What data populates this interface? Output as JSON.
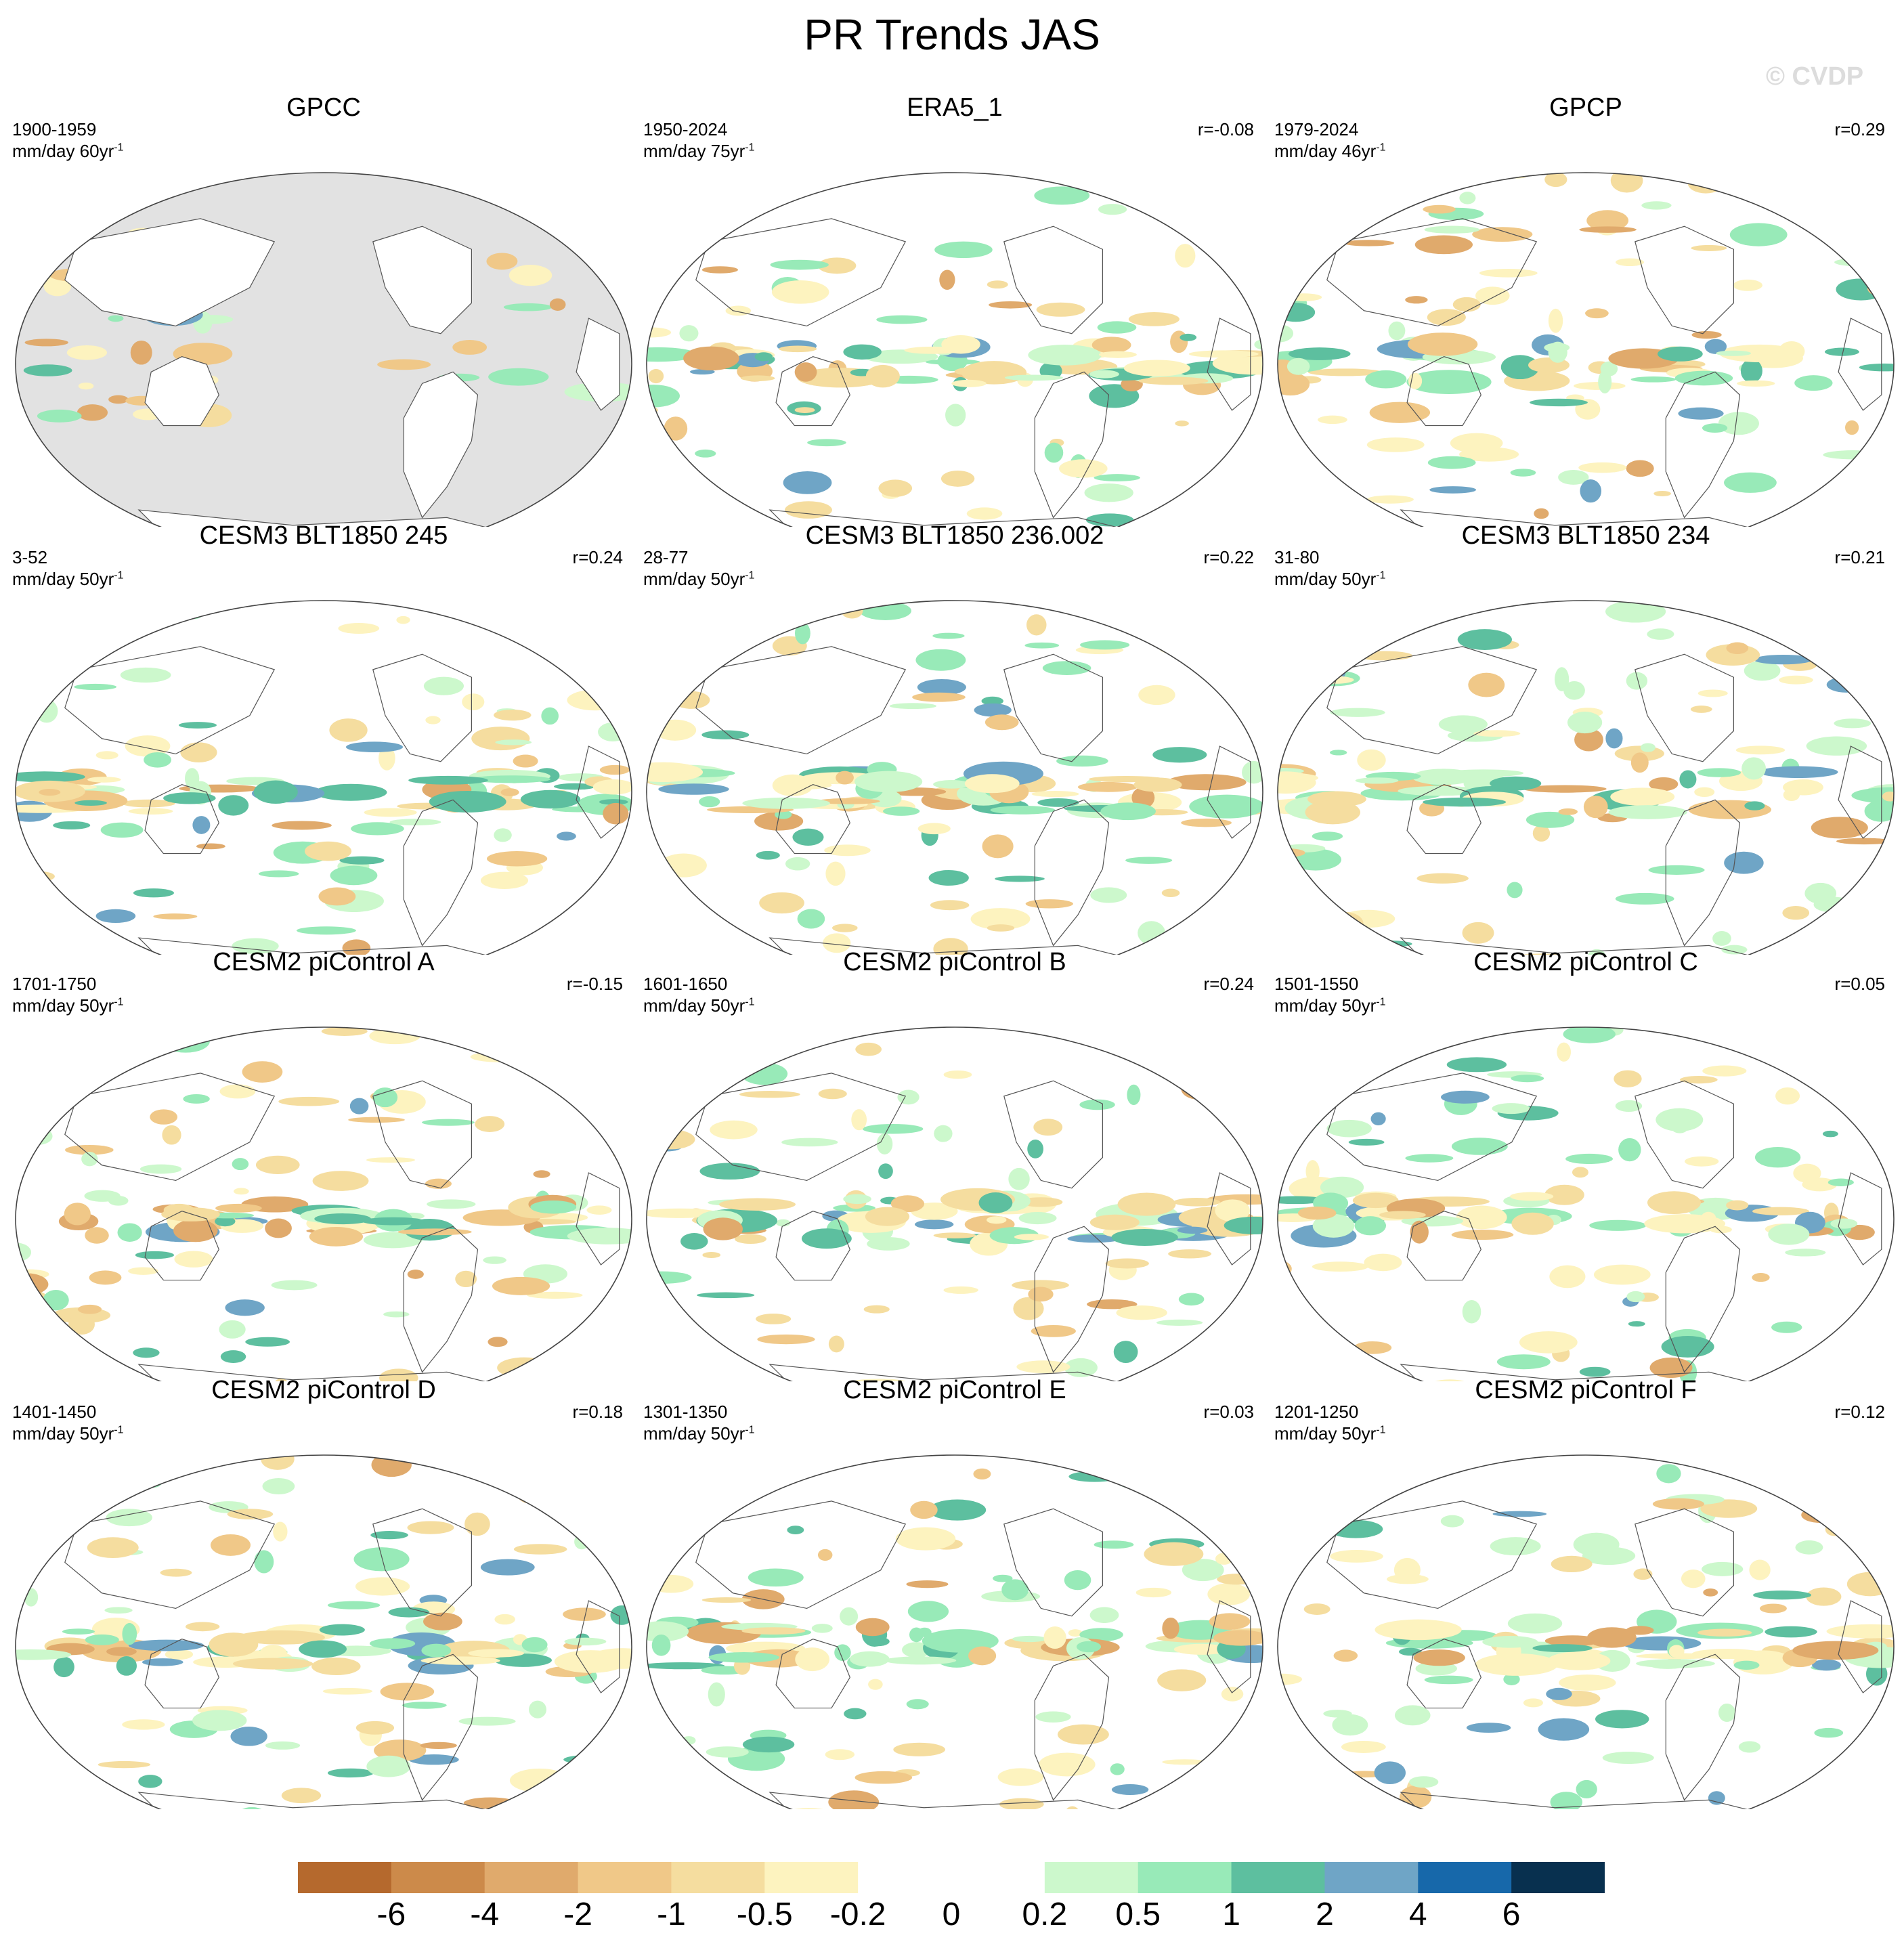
{
  "title": "PR Trends JAS",
  "watermark": "© CVDP",
  "panels": [
    {
      "title": "GPCC",
      "years": "1900-1959",
      "units": "mm/day 60yr",
      "corr": "",
      "masked": true
    },
    {
      "title": "ERA5_1",
      "years": "1950-2024",
      "units": "mm/day 75yr",
      "corr": "r=-0.08",
      "masked": false
    },
    {
      "title": "GPCP",
      "years": "1979-2024",
      "units": "mm/day 46yr",
      "corr": "r=0.29",
      "masked": false
    },
    {
      "title": "CESM3 BLT1850 245",
      "years": "3-52",
      "units": "mm/day 50yr",
      "corr": "r=0.24",
      "masked": false
    },
    {
      "title": "CESM3 BLT1850 236.002",
      "years": "28-77",
      "units": "mm/day 50yr",
      "corr": "r=0.22",
      "masked": false
    },
    {
      "title": "CESM3 BLT1850 234",
      "years": "31-80",
      "units": "mm/day 50yr",
      "corr": "r=0.21",
      "masked": false
    },
    {
      "title": "CESM2 piControl A",
      "years": "1701-1750",
      "units": "mm/day 50yr",
      "corr": "r=-0.15",
      "masked": false
    },
    {
      "title": "CESM2 piControl B",
      "years": "1601-1650",
      "units": "mm/day 50yr",
      "corr": "r=0.24",
      "masked": false
    },
    {
      "title": "CESM2 piControl C",
      "years": "1501-1550",
      "units": "mm/day 50yr",
      "corr": "r=0.05",
      "masked": false
    },
    {
      "title": "CESM2 piControl D",
      "years": "1401-1450",
      "units": "mm/day 50yr",
      "corr": "r=0.18",
      "masked": false
    },
    {
      "title": "CESM2 piControl E",
      "years": "1301-1350",
      "units": "mm/day 50yr",
      "corr": "r=0.03",
      "masked": false
    },
    {
      "title": "CESM2 piControl F",
      "years": "1201-1250",
      "units": "mm/day 50yr",
      "corr": "r=0.12",
      "masked": false
    }
  ],
  "units_exponent": "-1",
  "colorbar": {
    "colors": [
      "#b5692d",
      "#cc8a4a",
      "#e0aa6c",
      "#f0c888",
      "#f5dd9f",
      "#fdf3bf",
      "#ffffff",
      "#ffffff",
      "#ccf8cc",
      "#98eab8",
      "#5dbf9f",
      "#6fa5c6",
      "#1768aa",
      "#08304f"
    ],
    "labels": [
      "-6",
      "-4",
      "-2",
      "-1",
      "-0.5",
      "-0.2",
      "0",
      "0.2",
      "0.5",
      "1",
      "2",
      "4",
      "6"
    ]
  }
}
